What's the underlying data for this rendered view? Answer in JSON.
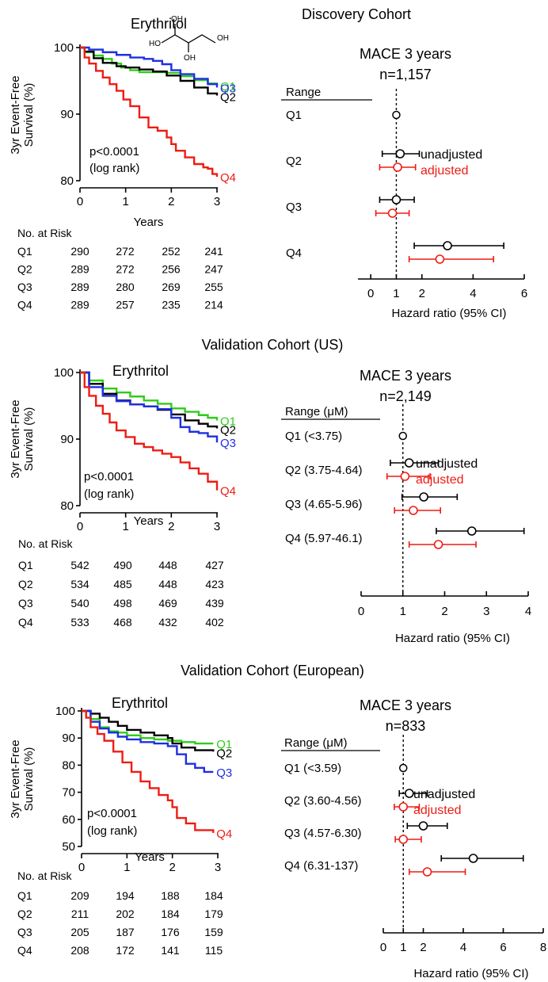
{
  "colors": {
    "Q1": "#2ecc1a",
    "Q2": "#000000",
    "Q3": "#1f2fe0",
    "Q4": "#ee1c14",
    "unadjusted": "#000000",
    "adjusted": "#ee1c14"
  },
  "chart_data": [
    {
      "panel": "discovery",
      "cohort_title": "Discovery Cohort",
      "km": {
        "type": "line",
        "title": "Erythritol",
        "ylabel": "3yr Event-Free Survival (%)",
        "xlabel": "Years",
        "ylim": [
          80,
          100
        ],
        "yticks": [
          80,
          90,
          100
        ],
        "xlim": [
          0,
          3
        ],
        "xticks": [
          0,
          1,
          2,
          3
        ],
        "pvalue": "p<0.0001",
        "test": "(log rank)",
        "series": [
          {
            "name": "Q1",
            "end_label": "Q1",
            "x": [
              0,
              0.1,
              0.3,
              0.5,
              0.7,
              0.9,
              1.1,
              1.3,
              1.6,
              1.9,
              2.2,
              2.5,
              2.8,
              3.0
            ],
            "y": [
              100,
              99.3,
              98.8,
              98.3,
              97.6,
              97,
              96.6,
              96.3,
              96.3,
              96.2,
              95.7,
              95.1,
              94.6,
              94.3
            ]
          },
          {
            "name": "Q2",
            "end_label": "Q2",
            "x": [
              0,
              0.1,
              0.3,
              0.5,
              0.8,
              1.0,
              1.3,
              1.6,
              1.9,
              2.2,
              2.5,
              2.8,
              3.0
            ],
            "y": [
              100,
              99.4,
              98.4,
              97.7,
              97.2,
              97,
              96.7,
              96.4,
              95.8,
              95,
              94,
              93.1,
              92.8
            ]
          },
          {
            "name": "Q3",
            "end_label": "Q3",
            "x": [
              0,
              0.2,
              0.5,
              0.8,
              1.1,
              1.4,
              1.6,
              1.8,
              2.0,
              2.2,
              2.5,
              2.8,
              3.0
            ],
            "y": [
              100,
              99.7,
              99.3,
              98.9,
              98.5,
              98.3,
              98,
              97.5,
              96.6,
              96,
              95.3,
              94.5,
              94
            ]
          },
          {
            "name": "Q4",
            "end_label": "Q4",
            "x": [
              0,
              0.1,
              0.2,
              0.35,
              0.5,
              0.65,
              0.8,
              0.95,
              1.1,
              1.3,
              1.5,
              1.7,
              1.9,
              2.0,
              2.1,
              2.3,
              2.5,
              2.7,
              2.8,
              2.9,
              3.0
            ],
            "y": [
              100,
              98.5,
              97.6,
              96.5,
              95.5,
              94.5,
              93.5,
              92.2,
              91.2,
              89.5,
              88,
              87.5,
              86.5,
              85.5,
              84.5,
              83.5,
              82.5,
              82,
              81.8,
              81,
              80.6
            ]
          }
        ],
        "risk_table": {
          "header": "No. at Risk",
          "rows": [
            {
              "label": "Q1",
              "values": [
                "290",
                "272",
                "252",
                "241"
              ]
            },
            {
              "label": "Q2",
              "values": [
                "289",
                "272",
                "256",
                "247"
              ]
            },
            {
              "label": "Q3",
              "values": [
                "289",
                "280",
                "269",
                "255"
              ]
            },
            {
              "label": "Q4",
              "values": [
                "289",
                "257",
                "235",
                "214"
              ]
            }
          ]
        }
      },
      "forest": {
        "type": "scatter",
        "title_line1": "MACE 3 years",
        "title_line2": "n=1,157",
        "range_header": "Range",
        "xlabel": "Hazard ratio (95% CI)",
        "xlim": [
          -0.5,
          6
        ],
        "xticks": [
          0,
          1,
          2,
          4,
          6
        ],
        "ref_line": 1,
        "legend": {
          "unadjusted": "unadjusted",
          "adjusted": "adjusted"
        },
        "rows": [
          {
            "label": "Q1",
            "reference": true,
            "hr": 1
          },
          {
            "label": "Q2",
            "unadjusted": {
              "hr": 1.15,
              "lo": 0.45,
              "hi": 1.9
            },
            "adjusted": {
              "hr": 1.05,
              "lo": 0.35,
              "hi": 1.75
            }
          },
          {
            "label": "Q3",
            "unadjusted": {
              "hr": 1.0,
              "lo": 0.35,
              "hi": 1.7
            },
            "adjusted": {
              "hr": 0.85,
              "lo": 0.2,
              "hi": 1.5
            }
          },
          {
            "label": "Q4",
            "unadjusted": {
              "hr": 3.0,
              "lo": 1.7,
              "hi": 5.2
            },
            "adjusted": {
              "hr": 2.7,
              "lo": 1.5,
              "hi": 4.8
            }
          }
        ]
      }
    },
    {
      "panel": "validation_us",
      "cohort_title": "Validation Cohort (US)",
      "km": {
        "type": "line",
        "title": "Erythritol",
        "ylabel": "3yr Event-Free Survival (%)",
        "xlabel": "Years",
        "ylim": [
          80,
          100
        ],
        "yticks": [
          80,
          90,
          100
        ],
        "xlim": [
          0,
          3
        ],
        "xticks": [
          0,
          1,
          2,
          3
        ],
        "pvalue": "p<0.0001",
        "test": "(log rank)",
        "series": [
          {
            "name": "Q1",
            "end_label": "Q1",
            "x": [
              0,
              0.2,
              0.5,
              0.8,
              1.1,
              1.4,
              1.7,
              2.0,
              2.3,
              2.6,
              2.8,
              3.0
            ],
            "y": [
              100,
              98.8,
              97.6,
              97,
              96.4,
              95.8,
              95.3,
              94.6,
              94.1,
              93.6,
              93.2,
              92.8
            ]
          },
          {
            "name": "Q2",
            "end_label": "Q2",
            "x": [
              0,
              0.2,
              0.5,
              0.8,
              1.1,
              1.4,
              1.7,
              2.0,
              2.3,
              2.6,
              2.8,
              3.0
            ],
            "y": [
              100,
              98.3,
              96.8,
              95.8,
              95.2,
              94.9,
              94.4,
              93.7,
              92.8,
              92.3,
              91.9,
              91.6
            ]
          },
          {
            "name": "Q3",
            "end_label": "Q3",
            "x": [
              0,
              0.2,
              0.5,
              0.8,
              1.1,
              1.4,
              1.7,
              2.0,
              2.2,
              2.4,
              2.6,
              2.8,
              3.0
            ],
            "y": [
              100,
              97.8,
              96.5,
              95.7,
              95.2,
              94.9,
              94.5,
              93.2,
              91.8,
              91.1,
              90.9,
              90.4,
              89.5
            ]
          },
          {
            "name": "Q4",
            "end_label": "Q4",
            "x": [
              0,
              0.1,
              0.2,
              0.35,
              0.5,
              0.65,
              0.8,
              1.0,
              1.2,
              1.4,
              1.6,
              1.8,
              2.0,
              2.2,
              2.4,
              2.6,
              2.8,
              3.0
            ],
            "y": [
              100,
              97.8,
              96.5,
              95,
              93.8,
              92.5,
              91.3,
              90.3,
              89.3,
              88.8,
              88.3,
              87.8,
              87.3,
              86.5,
              85.6,
              84.8,
              83.6,
              82.3
            ]
          }
        ],
        "risk_table": {
          "header": "No. at Risk",
          "rows": [
            {
              "label": "Q1",
              "values": [
                "542",
                "490",
                "448",
                "427"
              ]
            },
            {
              "label": "Q2",
              "values": [
                "534",
                "485",
                "448",
                "423"
              ]
            },
            {
              "label": "Q3",
              "values": [
                "540",
                "498",
                "469",
                "439"
              ]
            },
            {
              "label": "Q4",
              "values": [
                "533",
                "468",
                "432",
                "402"
              ]
            }
          ]
        }
      },
      "forest": {
        "type": "scatter",
        "title_line1": "MACE 3 years",
        "title_line2": "n=2,149",
        "range_header": "Range (μM)",
        "xlabel": "Hazard ratio (95% CI)",
        "xlim": [
          0,
          4
        ],
        "xticks": [
          0,
          1,
          2,
          3,
          4
        ],
        "ref_line": 1,
        "legend": {
          "unadjusted": "unadjusted",
          "adjusted": "adjusted"
        },
        "rows": [
          {
            "label": "Q1 (<3.75)",
            "reference": true,
            "hr": 1
          },
          {
            "label": "Q2 (3.75-4.64)",
            "unadjusted": {
              "hr": 1.15,
              "lo": 0.7,
              "hi": 1.85
            },
            "adjusted": {
              "hr": 1.05,
              "lo": 0.62,
              "hi": 1.65
            }
          },
          {
            "label": "Q3 (4.65-5.96)",
            "unadjusted": {
              "hr": 1.5,
              "lo": 0.98,
              "hi": 2.3
            },
            "adjusted": {
              "hr": 1.25,
              "lo": 0.8,
              "hi": 1.9
            }
          },
          {
            "label": "Q4 (5.97-46.1)",
            "unadjusted": {
              "hr": 2.65,
              "lo": 1.8,
              "hi": 3.9
            },
            "adjusted": {
              "hr": 1.85,
              "lo": 1.15,
              "hi": 2.75
            }
          }
        ]
      }
    },
    {
      "panel": "validation_eu",
      "cohort_title": "Validation Cohort (European)",
      "km": {
        "type": "line",
        "title": "Erythritol",
        "ylabel": "3yr Event-Free Survival (%)",
        "xlabel": "Years",
        "ylim": [
          50,
          100
        ],
        "yticks": [
          50,
          60,
          70,
          80,
          90,
          100
        ],
        "xlim": [
          0,
          3
        ],
        "xticks": [
          0,
          1,
          2,
          3
        ],
        "pvalue": "p<0.0001",
        "test": "(log rank)",
        "series": [
          {
            "name": "Q1",
            "end_label": "Q1",
            "x": [
              0,
              0.2,
              0.4,
              0.6,
              0.8,
              1.0,
              1.3,
              1.6,
              1.9,
              2.2,
              2.5,
              2.9
            ],
            "y": [
              100,
              97,
              94,
              92.5,
              92,
              91,
              90,
              89.5,
              89,
              88.5,
              88,
              88
            ]
          },
          {
            "name": "Q2",
            "end_label": "Q2",
            "x": [
              0,
              0.2,
              0.4,
              0.6,
              0.8,
              1.0,
              1.3,
              1.6,
              1.9,
              2.0,
              2.2,
              2.5,
              2.9
            ],
            "y": [
              100,
              99,
              97.5,
              96,
              94.5,
              93,
              92,
              91,
              90,
              88,
              86.5,
              85.5,
              85
            ]
          },
          {
            "name": "Q3",
            "end_label": "Q3",
            "x": [
              0,
              0.2,
              0.4,
              0.6,
              0.8,
              1.0,
              1.3,
              1.6,
              1.9,
              2.1,
              2.3,
              2.5,
              2.7,
              2.9
            ],
            "y": [
              100,
              96,
              93.5,
              92,
              90.5,
              89.5,
              88.5,
              88,
              87,
              84,
              80.5,
              79,
              77.5,
              77.5
            ]
          },
          {
            "name": "Q4",
            "end_label": "Q4",
            "x": [
              0,
              0.1,
              0.2,
              0.35,
              0.5,
              0.7,
              0.9,
              1.1,
              1.3,
              1.5,
              1.7,
              1.9,
              2.0,
              2.1,
              2.3,
              2.5,
              2.7,
              2.9
            ],
            "y": [
              100,
              97.5,
              94,
              91.5,
              89,
              85,
              81,
              77.5,
              74,
              71.5,
              69,
              67,
              64.5,
              60.5,
              58.5,
              56,
              56,
              55
            ]
          }
        ],
        "risk_table": {
          "header": "No. at Risk",
          "rows": [
            {
              "label": "Q1",
              "values": [
                "209",
                "194",
                "188",
                "184"
              ]
            },
            {
              "label": "Q2",
              "values": [
                "211",
                "202",
                "184",
                "179"
              ]
            },
            {
              "label": "Q3",
              "values": [
                "205",
                "187",
                "176",
                "159"
              ]
            },
            {
              "label": "Q4",
              "values": [
                "208",
                "172",
                "141",
                "115"
              ]
            }
          ]
        }
      },
      "forest": {
        "type": "scatter",
        "title_line1": "MACE 3 years",
        "title_line2": "n=833",
        "range_header": "Range (μM)",
        "xlabel": "Hazard ratio (95% CI)",
        "xlim": [
          0,
          8
        ],
        "xticks": [
          0,
          1,
          2,
          4,
          6,
          8
        ],
        "ref_line": 1,
        "legend": {
          "unadjusted": "unadjusted",
          "adjusted": "adjusted"
        },
        "rows": [
          {
            "label": "Q1 (<3.59)",
            "reference": true,
            "hr": 1
          },
          {
            "label": "Q2 (3.60-4.56)",
            "unadjusted": {
              "hr": 1.3,
              "lo": 0.8,
              "hi": 2.2
            },
            "adjusted": {
              "hr": 1.0,
              "lo": 0.55,
              "hi": 1.8
            }
          },
          {
            "label": "Q3 (4.57-6.30)",
            "unadjusted": {
              "hr": 2.0,
              "lo": 1.2,
              "hi": 3.2
            },
            "adjusted": {
              "hr": 1.0,
              "lo": 0.6,
              "hi": 1.9
            }
          },
          {
            "label": "Q4 (6.31-137)",
            "unadjusted": {
              "hr": 4.5,
              "lo": 2.9,
              "hi": 7.0
            },
            "adjusted": {
              "hr": 2.2,
              "lo": 1.3,
              "hi": 4.1
            }
          }
        ]
      }
    }
  ],
  "molecule": {
    "name": "erythritol structure",
    "labels": [
      "HO",
      "OH",
      "OH",
      "OH"
    ]
  }
}
